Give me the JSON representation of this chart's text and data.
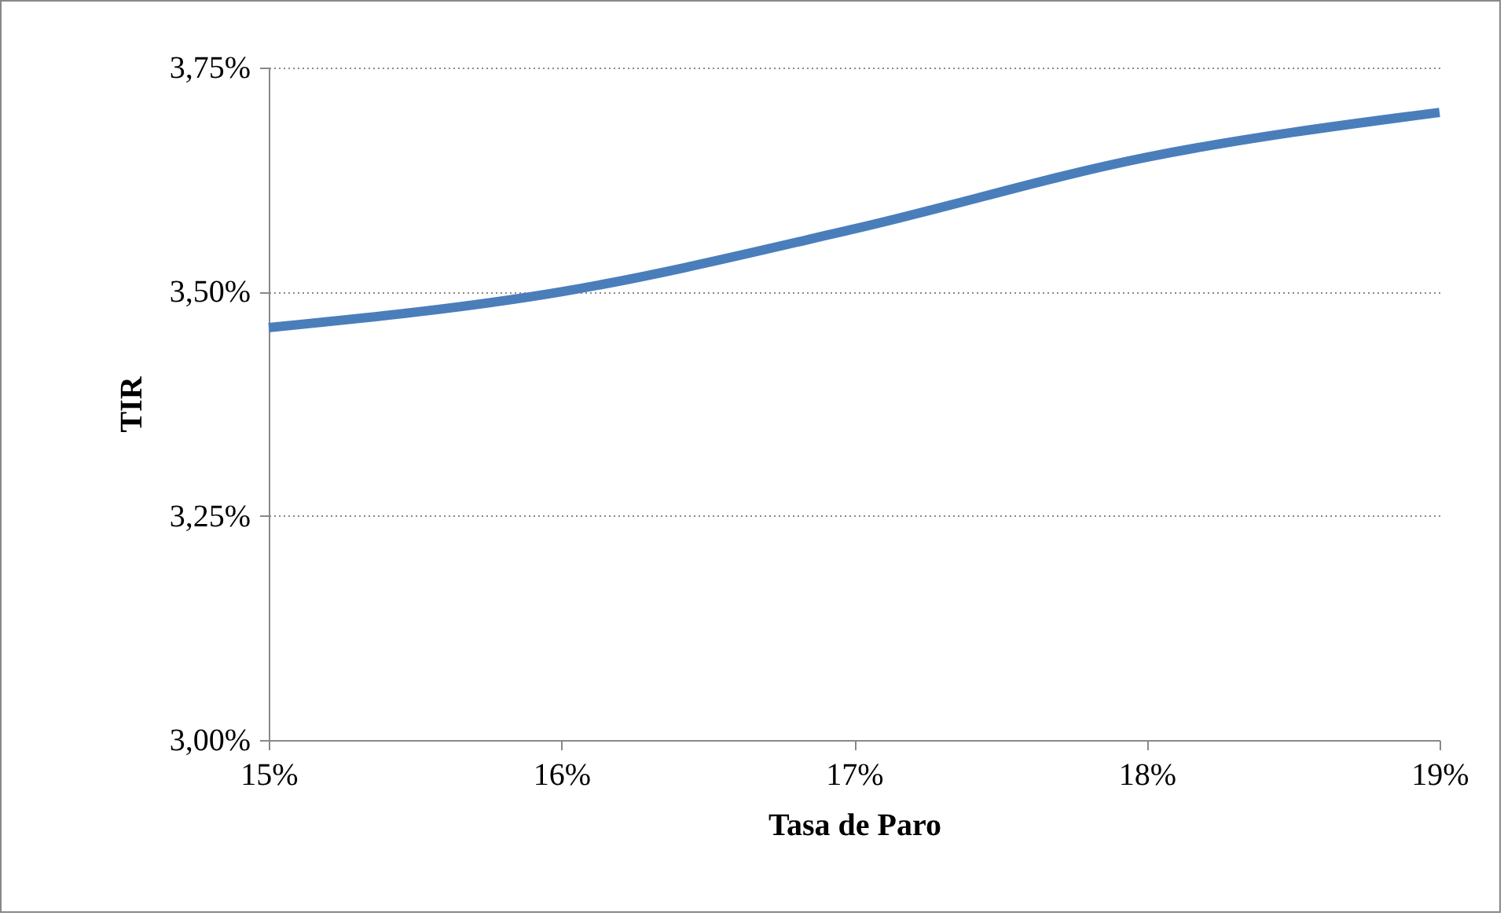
{
  "chart_data": {
    "type": "line",
    "xlabel": "Tasa de Paro",
    "ylabel": "TIR",
    "x": [
      15,
      16,
      17,
      18,
      19
    ],
    "series": [
      {
        "color": "#4a7ebb",
        "values": [
          3.46,
          3.5,
          3.57,
          3.65,
          3.7
        ]
      }
    ],
    "xlim": [
      15,
      19
    ],
    "xticks": [
      {
        "value": 15,
        "label": "15%"
      },
      {
        "value": 16,
        "label": "16%"
      },
      {
        "value": 17,
        "label": "17%"
      },
      {
        "value": 18,
        "label": "18%"
      },
      {
        "value": 19,
        "label": "19%"
      }
    ],
    "ylim": [
      3,
      3.75
    ],
    "yticks": [
      {
        "value": 3,
        "label": "3,00%"
      },
      {
        "value": 3.25,
        "label": "3,25%"
      },
      {
        "value": 3.5,
        "label": "3,50%"
      },
      {
        "value": 3.75,
        "label": "3,75%"
      }
    ],
    "grid": "y",
    "line_style": "solid"
  }
}
